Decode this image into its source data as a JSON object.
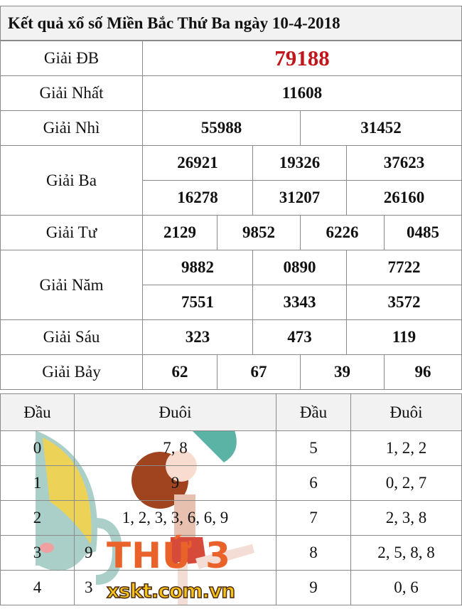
{
  "title": "Kết quả xổ số Miền Bắc Thứ Ba ngày 10-4-2018",
  "prizes": {
    "db": {
      "label": "Giải ĐB",
      "numbers": [
        "79188"
      ]
    },
    "nhat": {
      "label": "Giải Nhất",
      "numbers": [
        "11608"
      ]
    },
    "nhi": {
      "label": "Giải Nhì",
      "numbers": [
        "55988",
        "31452"
      ]
    },
    "ba": {
      "label": "Giải Ba",
      "numbers": [
        "26921",
        "19326",
        "37623",
        "16278",
        "31207",
        "26160"
      ]
    },
    "tu": {
      "label": "Giải Tư",
      "numbers": [
        "2129",
        "9852",
        "6226",
        "0485"
      ]
    },
    "nam": {
      "label": "Giải Năm",
      "numbers": [
        "9882",
        "0890",
        "7722",
        "7551",
        "3343",
        "3572"
      ]
    },
    "sau": {
      "label": "Giải Sáu",
      "numbers": [
        "323",
        "473",
        "119"
      ]
    },
    "bay": {
      "label": "Giải Bảy",
      "numbers": [
        "62",
        "67",
        "39",
        "96"
      ]
    }
  },
  "loto": {
    "headers": [
      "Đầu",
      "Đuôi",
      "Đầu",
      "Đuôi"
    ],
    "rows": [
      {
        "dau": "0",
        "duoi": "7, 8",
        "dau2": "5",
        "duoi2": "1, 2, 2"
      },
      {
        "dau": "1",
        "duoi": "9",
        "dau2": "6",
        "duoi2": "0, 2, 7"
      },
      {
        "dau": "2",
        "duoi": "1, 2, 3, 3, 6, 6, 9",
        "dau2": "7",
        "duoi2": "2, 3, 8"
      },
      {
        "dau": "3",
        "duoi": "9",
        "dau2": "8",
        "duoi2": "2, 5, 8, 8"
      },
      {
        "dau": "4",
        "duoi": "3",
        "dau2": "9",
        "duoi2": "0, 6"
      }
    ]
  },
  "watermark": {
    "day_text": "THỨ 3",
    "site": "xskt.com.vn"
  },
  "colors": {
    "special_prize": "#c0161c",
    "header_bg": "#f2f2f2",
    "watermark_orange": "#e8622a",
    "site_yellow": "#f7c21a"
  }
}
